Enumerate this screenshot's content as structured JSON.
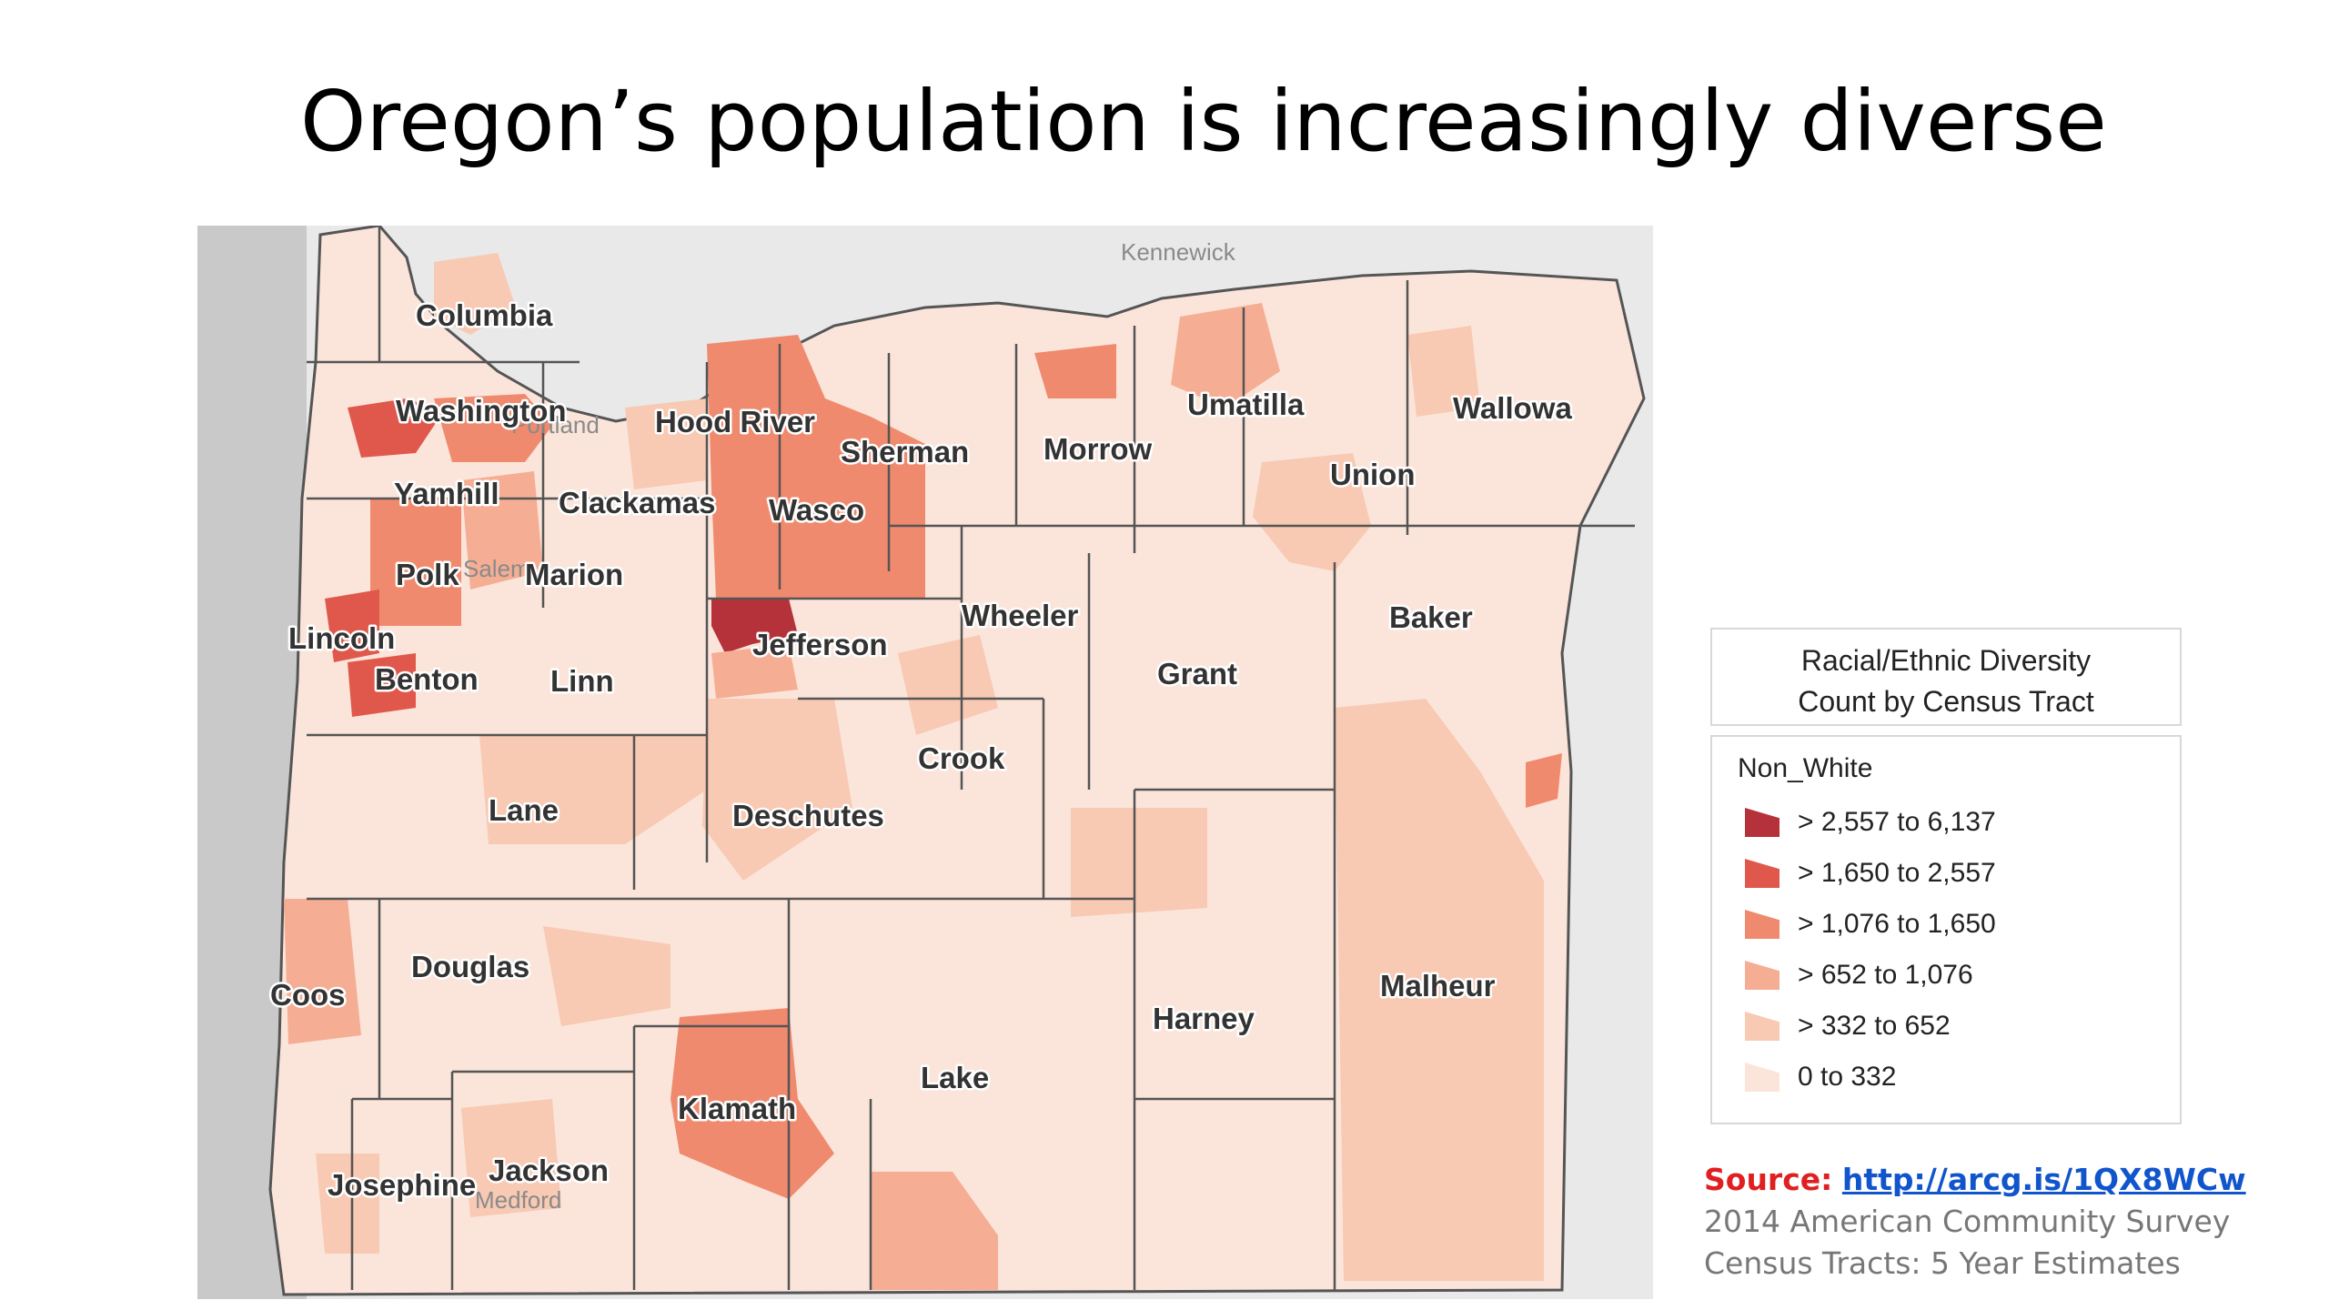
{
  "slide": {
    "title": "Oregon’s population is increasingly diverse"
  },
  "map": {
    "cities": [
      "Kennewick",
      "Portland",
      "Salem",
      "Medford"
    ],
    "counties": [
      "Columbia",
      "Washington",
      "Hood River",
      "Sherman",
      "Morrow",
      "Umatilla",
      "Wallowa",
      "Union",
      "Yamhill",
      "Clackamas",
      "Wasco",
      "Polk",
      "Marion",
      "Lincoln",
      "Benton",
      "Linn",
      "Jefferson",
      "Wheeler",
      "Baker",
      "Grant",
      "Crook",
      "Lane",
      "Deschutes",
      "Douglas",
      "Coos",
      "Harney",
      "Malheur",
      "Lake",
      "Klamath",
      "Jackson",
      "Josephine"
    ]
  },
  "legend": {
    "title_line1": "Racial/Ethnic Diversity",
    "title_line2": "Count by Census Tract",
    "field": "Non_White",
    "classes": [
      {
        "label": "> 2,557 to 6,137",
        "color": "#b5323a"
      },
      {
        "label": "> 1,650 to 2,557",
        "color": "#e0584c"
      },
      {
        "label": "> 1,076 to 1,650",
        "color": "#f08a6e"
      },
      {
        "label": "> 652 to 1,076",
        "color": "#f5ae94"
      },
      {
        "label": "> 332 to 652",
        "color": "#f8c9b3"
      },
      {
        "label": "0 to 332",
        "color": "#fbe5da"
      }
    ]
  },
  "source": {
    "label": "Source:",
    "url_text": "http://arcg.is/1QX8WCw",
    "line2": "2014 American Community Survey",
    "line3": "Census Tracts: 5 Year Estimates"
  },
  "colors": {
    "ocean": "#c9c9c9",
    "land_bg": "#ececec",
    "base_fill": "#fbe5da",
    "county_border": "#555555"
  }
}
